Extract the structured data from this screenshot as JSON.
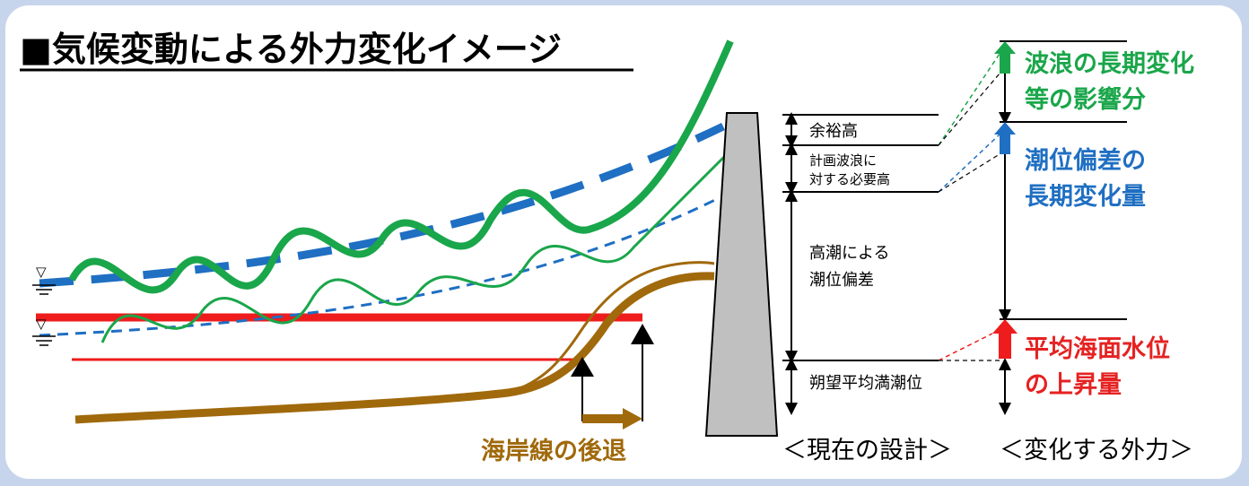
{
  "title": "■気候変動による外力変化イメージ",
  "design_levels": {
    "freeboard": "余裕高",
    "wave_required_line1": "計画波浪に",
    "wave_required_line2": "対する必要高",
    "surge_line1": "高潮による",
    "surge_line2": "潮位偏差",
    "mean_high_water": "朔望平均満潮位"
  },
  "changes": {
    "wave_line1": "波浪の長期変化",
    "wave_line2": "等の影響分",
    "surge_line1": "潮位偏差の",
    "surge_line2": "長期変化量",
    "sea_level_line1": "平均海面水位",
    "sea_level_line2": "の上昇量"
  },
  "shoreline_retreat": "海岸線の後退",
  "footer_current": "＜現在の設計＞",
  "footer_change": "＜変化する外力＞",
  "water_symbol": "▽",
  "colors": {
    "wave": "#1aa64a",
    "surge": "#1f6fc2",
    "sea_level": "#ee1c1c",
    "shore": "#a0690b",
    "wall": "#c0c0c0",
    "sea_level_text": "#e52222",
    "surge_text": "#1f6fc2",
    "wave_text": "#1aa64a",
    "shore_text": "#a0690b"
  }
}
